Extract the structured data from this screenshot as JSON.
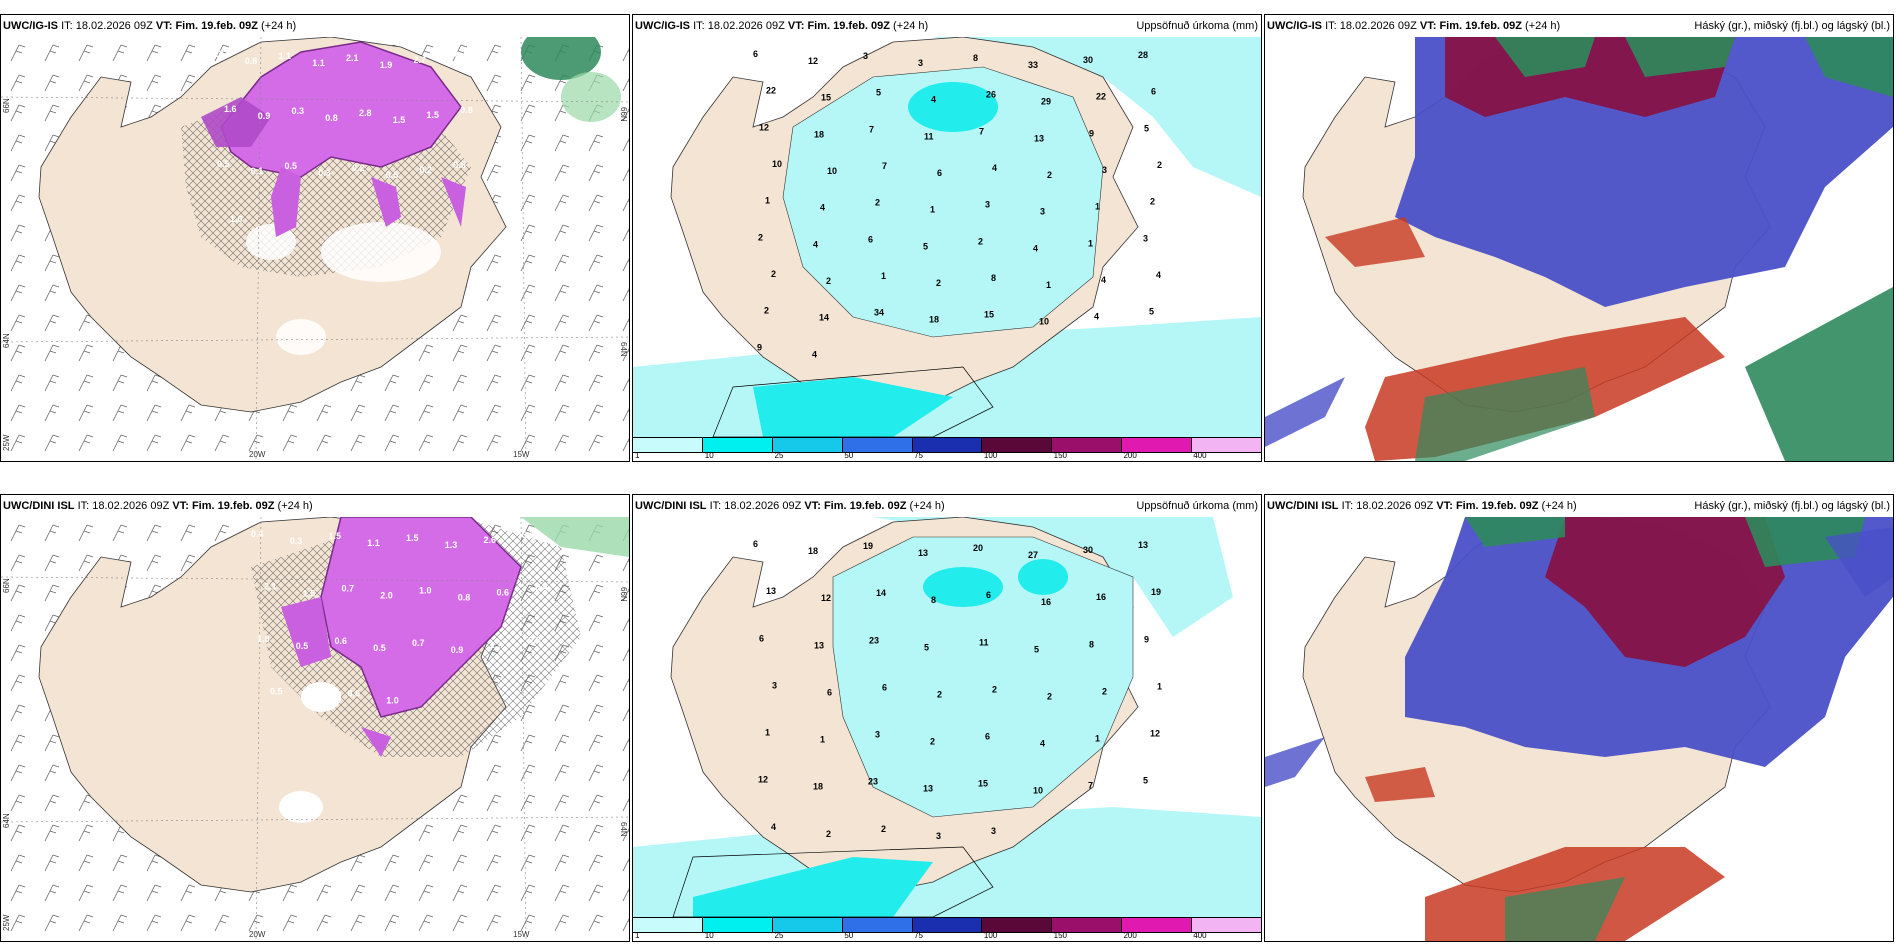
{
  "panels": [
    {
      "model": "UWC/IG-IS",
      "it_label": "IT:",
      "it": "18.02.2026 09Z",
      "vt_label": "VT:",
      "vt": "Fim. 19.feb. 09Z",
      "lead": "(+24 h)",
      "right_title": "",
      "coords": {
        "lat_66": "66N",
        "lat_64": "64N",
        "lon_20": "20W",
        "lon_15": "15W",
        "lon_25": "25W"
      },
      "values": [
        "1.3",
        "0.8",
        "1.1",
        "1.1",
        "2.1",
        "1.9",
        "2.7",
        "2.4",
        "1.6",
        "0.9",
        "0.3",
        "0.8",
        "2.8",
        "1.5",
        "1.5",
        "0.8",
        "0.5",
        "0.1",
        "0.5",
        "0.3",
        "0.2",
        "0.5",
        "0.2",
        "0.5",
        "1.0"
      ]
    },
    {
      "model": "UWC/IG-IS",
      "it_label": "IT:",
      "it": "18.02.2026 09Z",
      "vt_label": "VT:",
      "vt": "Fim. 19.feb. 09Z",
      "lead": "(+24 h)",
      "right_title": "Uppsöfnuð úrkoma (mm)",
      "values": [
        "6",
        "12",
        "3",
        "3",
        "8",
        "33",
        "30",
        "28",
        "22",
        "15",
        "5",
        "4",
        "26",
        "29",
        "22",
        "6",
        "12",
        "18",
        "7",
        "11",
        "7",
        "13",
        "9",
        "5",
        "10",
        "10",
        "7",
        "6",
        "4",
        "2",
        "3",
        "2",
        "1",
        "4",
        "2",
        "1",
        "3",
        "3",
        "1",
        "2",
        "2",
        "4",
        "6",
        "5",
        "2",
        "4",
        "1",
        "3",
        "2",
        "2",
        "1",
        "2",
        "8",
        "1",
        "4",
        "4",
        "2",
        "14",
        "34",
        "18",
        "15",
        "10",
        "4",
        "5",
        "9",
        "4"
      ]
    },
    {
      "model": "UWC/IG-IS",
      "it_label": "IT:",
      "it": "18.02.2026 09Z",
      "vt_label": "VT:",
      "vt": "Fim. 19.feb. 09Z",
      "lead": "(+24 h)",
      "right_title": "Háský (gr.), miðský (fj.bl.) og lágský (bl.)"
    },
    {
      "model": "UWC/DINI ISL",
      "it_label": "IT:",
      "it": "18.02.2026 09Z",
      "vt_label": "VT:",
      "vt": "Fim. 19.feb. 09Z",
      "lead": "(+24 h)",
      "right_title": "",
      "coords": {
        "lat_66": "66N",
        "lat_64": "64N",
        "lon_20": "20W",
        "lon_15": "15W",
        "lon_25": "25W"
      },
      "values": [
        "0.4",
        "0.3",
        "1.5",
        "1.1",
        "1.5",
        "1.3",
        "2.6",
        "3.3",
        "2.1",
        "1.5",
        "0.7",
        "2.0",
        "1.0",
        "0.8",
        "0.6",
        "0.4",
        "1.8",
        "0.5",
        "0.6",
        "0.5",
        "0.7",
        "0.9",
        "1.7",
        "0.3",
        "0.5",
        "0.6",
        "0.8",
        "1.0"
      ]
    },
    {
      "model": "UWC/DINI ISL",
      "it_label": "IT:",
      "it": "18.02.2026 09Z",
      "vt_label": "VT:",
      "vt": "Fim. 19.feb. 09Z",
      "lead": "(+24 h)",
      "right_title": "Uppsöfnuð úrkoma (mm)",
      "values": [
        "6",
        "18",
        "19",
        "13",
        "20",
        "27",
        "30",
        "13",
        "13",
        "12",
        "14",
        "8",
        "6",
        "16",
        "16",
        "19",
        "6",
        "13",
        "23",
        "5",
        "11",
        "5",
        "8",
        "9",
        "3",
        "6",
        "6",
        "2",
        "2",
        "2",
        "2",
        "1",
        "1",
        "1",
        "3",
        "2",
        "6",
        "4",
        "1",
        "12",
        "12",
        "18",
        "23",
        "13",
        "15",
        "10",
        "7",
        "5",
        "4",
        "2",
        "2",
        "3",
        "3"
      ]
    },
    {
      "model": "UWC/DINI ISL",
      "it_label": "IT:",
      "it": "18.02.2026 09Z",
      "vt_label": "VT:",
      "vt": "Fim. 19.feb. 09Z",
      "lead": "(+24 h)",
      "right_title": "Háský (gr.), miðský (fj.bl.) og lágský (bl.)"
    }
  ],
  "legend": {
    "ticks": [
      "1",
      "10",
      "25",
      "50",
      "75",
      "100",
      "150",
      "200",
      "400"
    ],
    "colors": [
      "#c8fbfb",
      "#00f0f0",
      "#16c8ea",
      "#2f6fe8",
      "#1a2fb0",
      "#5a0838",
      "#9a0f6a",
      "#e01ab0",
      "#f2b4f2"
    ]
  },
  "colors": {
    "land": "#f3e4d3",
    "sea_precip_light": "#b5f7f7",
    "sea_precip_mid": "#22ecec",
    "snow_purple": "#d46ce8",
    "snow_dark": "#7a2a8a",
    "cloud_high": "#2e8a5c",
    "cloud_mid": "#8a1040",
    "cloud_low": "#4a50c8",
    "cloud_red": "#c83a22"
  }
}
